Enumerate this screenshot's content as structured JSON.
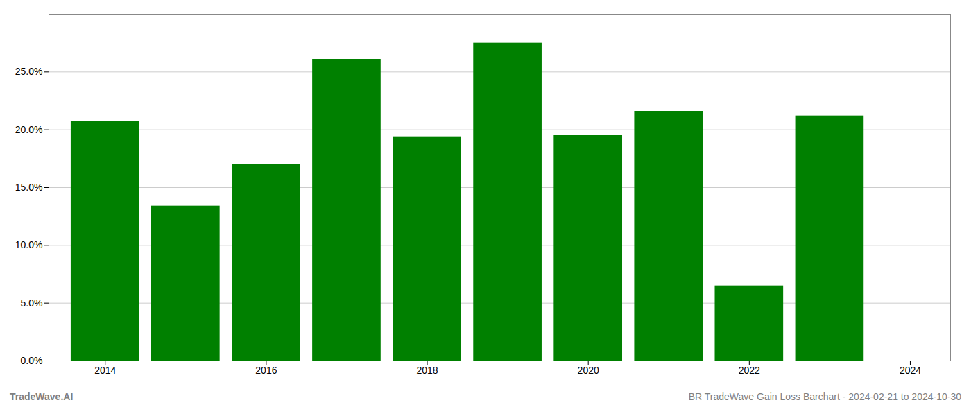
{
  "chart_data": {
    "type": "bar",
    "x": [
      2014,
      2015,
      2016,
      2017,
      2018,
      2019,
      2020,
      2021,
      2022,
      2023
    ],
    "values": [
      0.207,
      0.134,
      0.17,
      0.261,
      0.194,
      0.275,
      0.195,
      0.216,
      0.065,
      0.212
    ],
    "color": "#008000",
    "xlim": [
      2013.3,
      2024.5
    ],
    "xticks": [
      2014,
      2016,
      2018,
      2020,
      2022,
      2024
    ],
    "ylim": [
      0,
      0.3
    ],
    "yticks": [
      {
        "value": 0.0,
        "label": "0.0%"
      },
      {
        "value": 0.05,
        "label": "5.0%"
      },
      {
        "value": 0.1,
        "label": "10.0%"
      },
      {
        "value": 0.15,
        "label": "15.0%"
      },
      {
        "value": 0.2,
        "label": "20.0%"
      },
      {
        "value": 0.25,
        "label": "25.0%"
      }
    ],
    "grid": true,
    "annotations": [
      "TradeWave.AI",
      "BR TradeWave Gain Loss Barchart - 2024-02-21 to 2024-10-30"
    ]
  }
}
